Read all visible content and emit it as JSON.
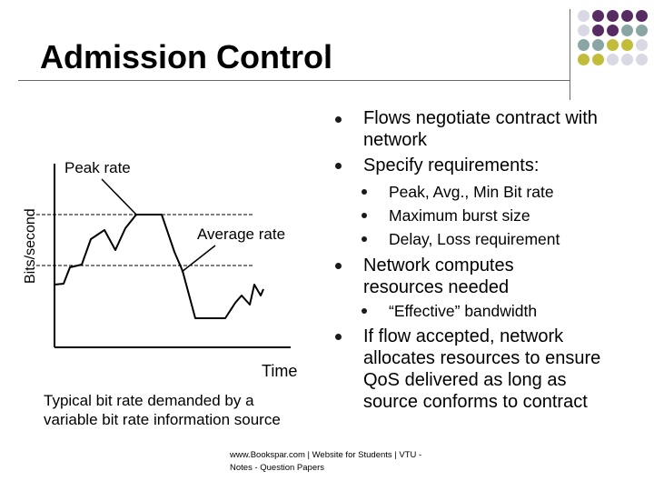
{
  "slide": {
    "title": "Admission Control",
    "decoration": {
      "grid_colors": [
        [
          "#d9d9e6",
          "#582c63",
          "#582c63",
          "#582c63",
          "#582c63"
        ],
        [
          "#d9d9e6",
          "#582c63",
          "#582c63",
          "#89a5a4",
          "#89a5a4"
        ],
        [
          "#89a5a4",
          "#89a5a4",
          "#c1bd3a",
          "#c1bd3a",
          "#d9d9e6"
        ],
        [
          "#c1bd3a",
          "#c1bd3a",
          "#d9d9e6",
          "#d9d9e6",
          "#d9d9e6"
        ]
      ]
    }
  },
  "figure": {
    "y_axis_label": "Bits/second",
    "x_axis_label": "Time",
    "peak_label": "Peak rate",
    "average_label": "Average rate",
    "caption": "Typical bit rate demanded by a variable bit rate information source"
  },
  "bullets": [
    {
      "text": "Flows negotiate contract with network",
      "level": 1
    },
    {
      "text": "Specify requirements:",
      "level": 1
    },
    {
      "text": "Peak, Avg., Min Bit rate",
      "level": 2
    },
    {
      "text": "Maximum burst size",
      "level": 2
    },
    {
      "text": "Delay, Loss requirement",
      "level": 2
    },
    {
      "text": "Network computes resources needed",
      "level": 1
    },
    {
      "text": "“Effective” bandwidth",
      "level": 2
    },
    {
      "text": "If flow accepted, network allocates resources to ensure QoS delivered as long as source conforms to contract",
      "level": 1
    }
  ],
  "footer": {
    "text": "www.Bookspar.com | Website for Students | VTU - Notes - Question Papers"
  }
}
